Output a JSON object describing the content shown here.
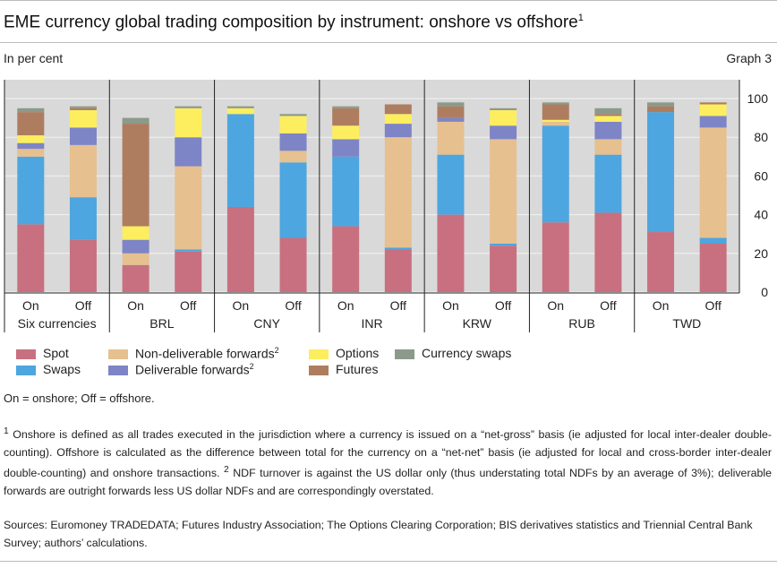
{
  "title": "EME currency global trading composition by instrument: onshore vs offshore",
  "title_note": "1",
  "unit_label": "In per cent",
  "graph_number": "Graph 3",
  "chart_data": {
    "type": "bar",
    "stacked": true,
    "groups": [
      "Six currencies",
      "BRL",
      "CNY",
      "INR",
      "KRW",
      "RUB",
      "TWD"
    ],
    "bar_labels": [
      "On",
      "Off"
    ],
    "ylim": [
      0,
      100
    ],
    "yticks": [
      0,
      20,
      40,
      60,
      80,
      100
    ],
    "grid": true,
    "legend_position": "bottom-left",
    "series": [
      {
        "name": "Spot",
        "color": "#c8707f",
        "values": [
          35,
          27,
          14,
          21,
          44,
          28,
          34,
          22,
          40,
          24,
          36,
          41,
          31,
          25
        ]
      },
      {
        "name": "Swaps",
        "color": "#4da6df",
        "values": [
          35,
          22,
          0,
          1,
          48,
          39,
          36,
          1,
          31,
          1,
          50,
          30,
          62,
          3
        ]
      },
      {
        "name": "Non-deliverable forwards",
        "color": "#e6c08f",
        "values": [
          4,
          27,
          6,
          43,
          0,
          6,
          0,
          57,
          17,
          54,
          2,
          8,
          0,
          57
        ]
      },
      {
        "name": "Deliverable forwards",
        "color": "#7d85c6",
        "values": [
          3,
          9,
          7,
          15,
          0,
          9,
          9,
          7,
          2,
          7,
          0,
          9,
          0,
          6
        ]
      },
      {
        "name": "Options",
        "color": "#fcee5e",
        "values": [
          4,
          9,
          7,
          15,
          3,
          9,
          7,
          5,
          0,
          8,
          1,
          3,
          0,
          6
        ]
      },
      {
        "name": "Futures",
        "color": "#ae7d5f",
        "values": [
          12,
          1,
          53,
          0,
          0,
          0,
          9,
          5,
          6,
          0,
          8,
          1,
          3,
          1
        ]
      },
      {
        "name": "Currency swaps",
        "color": "#8b9a8a",
        "values": [
          2,
          1,
          3,
          1,
          1,
          1,
          1,
          0,
          2,
          1,
          1,
          3,
          2,
          0
        ]
      }
    ],
    "legend_labels": [
      {
        "text": "Spot",
        "sup": "",
        "color": "#c8707f"
      },
      {
        "text": "Non-deliverable forwards",
        "sup": "2",
        "color": "#e6c08f"
      },
      {
        "text": "Options",
        "sup": "",
        "color": "#fcee5e"
      },
      {
        "text": "Currency swaps",
        "sup": "",
        "color": "#8b9a8a"
      },
      {
        "text": "Swaps",
        "sup": "",
        "color": "#4da6df"
      },
      {
        "text": "Deliverable forwards",
        "sup": "2",
        "color": "#7d85c6"
      },
      {
        "text": "Futures",
        "sup": "",
        "color": "#ae7d5f"
      }
    ]
  },
  "abbreviations": "On = onshore; Off = offshore.",
  "footnote_1_marker": "1",
  "footnote_1": "Onshore is defined as all trades executed in the jurisdiction where a currency is issued on a “net-gross” basis (ie adjusted for local inter-dealer double-counting). Offshore is calculated as the difference between total for the currency on a “net-net” basis (ie adjusted for local and cross-border inter-dealer double-counting) and onshore transactions.",
  "footnote_2_marker": "2",
  "footnote_2": "NDF turnover is against the US dollar only (thus understating total NDFs by an average of 3%); deliverable forwards are outright forwards less US dollar NDFs and are correspondingly overstated.",
  "sources": "Sources: Euromoney TRADEDATA; Futures Industry Association; The Options Clearing Corporation; BIS derivatives statistics and Triennial Central Bank Survey; authors’ calculations."
}
